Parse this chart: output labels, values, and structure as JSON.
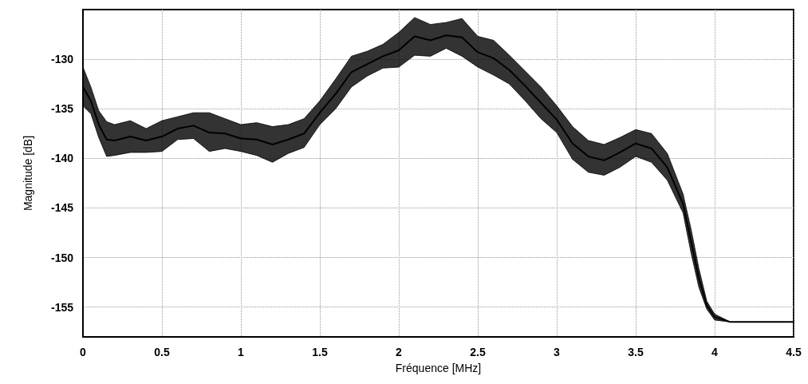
{
  "chart_data": {
    "type": "line",
    "xlabel": "Fréquence [MHz]",
    "ylabel": "Magnitude [dB]",
    "xlim": [
      0,
      4.5
    ],
    "xticks": [
      0,
      0.5,
      1,
      1.5,
      2,
      2.5,
      3,
      3.5,
      4,
      4.5
    ],
    "ylim": [
      -158,
      -125
    ],
    "yticks": [
      -155,
      -150,
      -145,
      -140,
      -135,
      -130
    ],
    "grid": true,
    "marker": "none",
    "line_style": "solid",
    "series": [
      {
        "color": "#000000",
        "x": [
          0,
          0.05,
          0.1,
          0.15,
          0.2,
          0.3,
          0.4,
          0.5,
          0.6,
          0.7,
          0.8,
          0.9,
          1.0,
          1.1,
          1.2,
          1.3,
          1.4,
          1.5,
          1.6,
          1.7,
          1.8,
          1.9,
          2.0,
          2.1,
          2.2,
          2.3,
          2.4,
          2.5,
          2.6,
          2.7,
          2.8,
          2.9,
          3.0,
          3.1,
          3.2,
          3.3,
          3.4,
          3.5,
          3.6,
          3.7,
          3.8,
          3.85,
          3.9,
          3.95,
          4.0,
          4.1,
          4.5
        ],
        "values": [
          -132.8,
          -134.2,
          -136.6,
          -138.1,
          -138.2,
          -137.8,
          -138.2,
          -137.8,
          -137.0,
          -136.7,
          -137.4,
          -137.5,
          -138.0,
          -138.1,
          -138.6,
          -138.1,
          -137.5,
          -135.4,
          -133.5,
          -131.3,
          -130.5,
          -129.7,
          -129.1,
          -127.7,
          -128.1,
          -127.6,
          -127.8,
          -129.3,
          -129.9,
          -131.1,
          -132.7,
          -134.4,
          -136.1,
          -138.5,
          -139.8,
          -140.2,
          -139.4,
          -138.5,
          -139.0,
          -140.9,
          -144.6,
          -148.3,
          -152.1,
          -154.8,
          -156.0,
          -156.5,
          -156.5
        ],
        "upper": [
          -130.8,
          -132.8,
          -135.2,
          -136.3,
          -136.6,
          -136.2,
          -137.0,
          -136.2,
          -135.8,
          -135.4,
          -135.4,
          -136.0,
          -136.6,
          -136.4,
          -136.8,
          -136.6,
          -136.0,
          -134.2,
          -132.0,
          -129.7,
          -129.2,
          -128.5,
          -127.3,
          -125.8,
          -126.5,
          -126.3,
          -125.9,
          -127.7,
          -128.1,
          -129.6,
          -131.2,
          -132.8,
          -134.7,
          -136.8,
          -138.2,
          -138.6,
          -137.9,
          -137.1,
          -137.5,
          -139.5,
          -143.6,
          -147.1,
          -151.1,
          -154.4,
          -155.7,
          -156.5,
          -156.5
        ],
        "lower": [
          -134.7,
          -135.5,
          -137.9,
          -139.8,
          -139.7,
          -139.4,
          -139.4,
          -139.3,
          -138.1,
          -138.0,
          -139.3,
          -139.0,
          -139.3,
          -139.7,
          -140.4,
          -139.5,
          -138.9,
          -136.6,
          -135.0,
          -132.8,
          -131.7,
          -130.9,
          -130.8,
          -129.6,
          -129.7,
          -128.9,
          -129.7,
          -130.8,
          -131.6,
          -132.5,
          -134.2,
          -136.0,
          -137.4,
          -140.1,
          -141.4,
          -141.7,
          -140.9,
          -139.8,
          -140.4,
          -142.2,
          -145.5,
          -149.5,
          -153.0,
          -155.2,
          -156.3,
          -156.5,
          -156.5
        ]
      }
    ]
  }
}
